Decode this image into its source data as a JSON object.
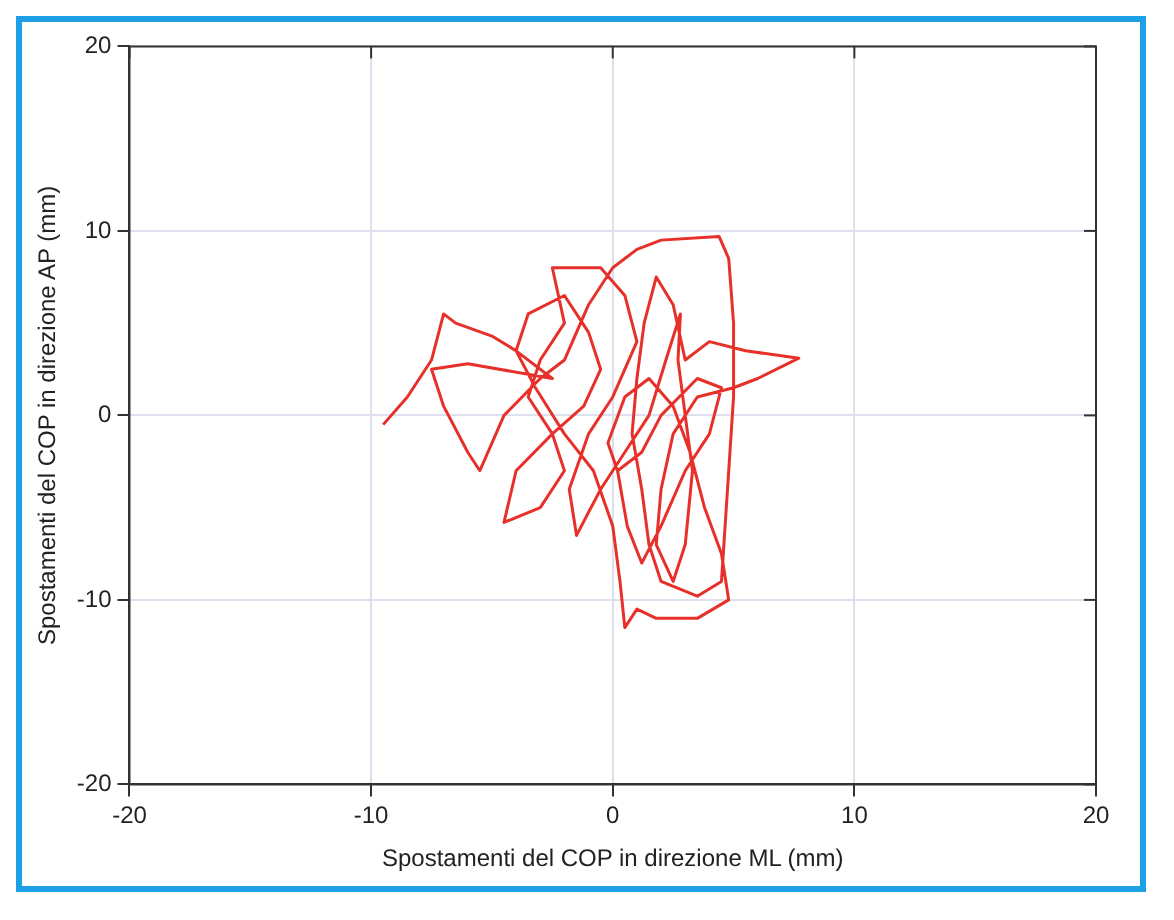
{
  "chart_data": {
    "type": "line",
    "xlabel": "Spostamenti del COP in direzione ML (mm)",
    "ylabel": "Spostamenti del COP in direzione AP (mm)",
    "xlim": [
      -20,
      20
    ],
    "ylim": [
      -20,
      20
    ],
    "xticks": [
      -20,
      -10,
      0,
      10,
      20
    ],
    "yticks": [
      -20,
      -10,
      0,
      10,
      20
    ],
    "grid": true,
    "legend": false,
    "marker": "none",
    "line_style": "solid",
    "series": [
      {
        "color": "#e8302a",
        "x": [
          -9.5,
          -8.5,
          -7.5,
          -7,
          -6.5,
          -5,
          -4,
          -2.5,
          -6,
          -7.5,
          -7,
          -6,
          -5.5,
          -4.5,
          -3,
          -2,
          -1,
          0,
          1,
          2,
          4.4,
          4.8,
          5,
          5,
          4.8,
          4.6,
          4.5,
          3.5,
          2,
          1.5,
          1.2,
          0.8,
          1,
          1.3,
          1.8,
          2.5,
          3,
          4,
          5.5,
          7.7,
          6,
          5,
          3.5,
          2.5,
          2,
          1.8,
          2.5,
          3,
          3.3,
          3,
          2.7,
          2.8,
          2.2,
          1.5,
          0.5,
          -0.5,
          -1.5,
          -1.8,
          -1,
          0,
          1,
          0.5,
          -0.5,
          -2.5,
          -2,
          -3,
          -3.5,
          -2.5,
          -2,
          -3,
          -4.5,
          -4,
          -2.5,
          -1.2,
          -0.5,
          -1,
          -2,
          -3.5,
          -4,
          -3.2,
          -2,
          -0.8,
          0,
          0.3,
          0.5,
          1,
          1.8,
          3.5,
          4.8,
          4.5,
          3.8,
          3.2,
          2.5,
          1.5,
          0.5,
          -0.2,
          0.2,
          1.2,
          2,
          3.5,
          4.5,
          4,
          3,
          2,
          1.2,
          0.6,
          0.2
        ],
        "values": [
          -0.5,
          1,
          3,
          5.5,
          5,
          4.3,
          3.5,
          2,
          2.8,
          2.5,
          0.5,
          -2,
          -3,
          0,
          2,
          3,
          6,
          8,
          9,
          9.5,
          9.7,
          8.5,
          5,
          1,
          -3,
          -7,
          -9,
          -9.8,
          -9,
          -7,
          -4,
          -1,
          2,
          5,
          7.5,
          6,
          3,
          4,
          3.5,
          3.1,
          2,
          1.5,
          1,
          -1,
          -4,
          -7,
          -9,
          -7,
          -3,
          0,
          3,
          5.5,
          3,
          0,
          -2,
          -4,
          -6.5,
          -4,
          -1,
          1,
          4,
          6.5,
          8,
          8,
          5,
          3,
          1,
          -1,
          -3,
          -5,
          -5.8,
          -3,
          -1,
          0.5,
          2.5,
          4.5,
          6.5,
          5.5,
          3.5,
          1.5,
          -1,
          -3,
          -6,
          -9,
          -11.5,
          -10.5,
          -11,
          -11,
          -10,
          -7.5,
          -5,
          -2,
          0.5,
          2,
          1,
          -1.5,
          -3,
          -2,
          0,
          2,
          1.5,
          -1,
          -3,
          -6,
          -8,
          -6,
          -3
        ]
      }
    ]
  }
}
